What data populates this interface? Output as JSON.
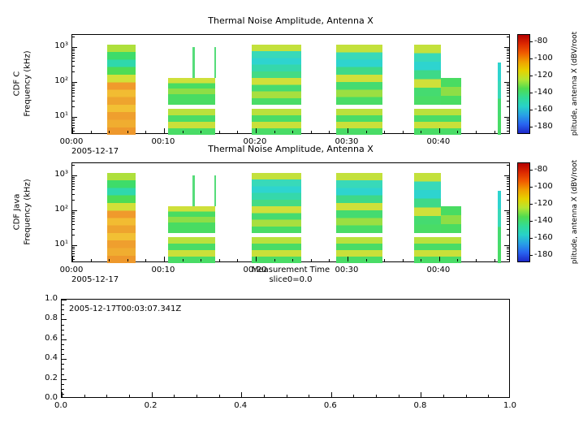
{
  "figure": {
    "background": "#ffffff"
  },
  "chart_data": {
    "type": "heatmap",
    "description": "Two stacked spectrogram panels (CDF C and CDF Java readers) of thermal noise amplitude bursts vs time and log frequency, plus an empty bottom panel with a time annotation.",
    "panels": [
      {
        "name": "CDF C",
        "title": "Thermal Noise Amplitude, Antenna X",
        "ylabel_line1": "CDF C",
        "ylabel_line2": "Frequency (kHz)",
        "y_scale": "log",
        "y_tick_labels": [
          "10³",
          "10²",
          "10¹"
        ],
        "y_tick_values": [
          1000,
          100,
          10
        ],
        "x_tick_labels": [
          "00:00",
          "00:10",
          "00:20",
          "00:30",
          "00:40"
        ],
        "x_tick_minutes": [
          0,
          10,
          20,
          30,
          40
        ],
        "x_start_date": "2005-12-17",
        "x_range_minutes": [
          0,
          47.8
        ],
        "colorbar": {
          "label": "plitude, antenna X (dBV/root",
          "tick_labels": [
            "-80",
            "-100",
            "-120",
            "-140",
            "-160",
            "-180"
          ]
        }
      },
      {
        "name": "CDF Java",
        "title": "Thermal Noise Amplitude, Antenna X",
        "ylabel_line1": "CDF Java",
        "ylabel_line2": "Frequency (kHz)",
        "y_scale": "log",
        "y_tick_labels": [
          "10³",
          "10²",
          "10¹"
        ],
        "y_tick_values": [
          1000,
          100,
          10
        ],
        "x_tick_labels": [
          "00:00",
          "00:10",
          "00:20",
          "00:30",
          "00:40"
        ],
        "x_tick_minutes": [
          0,
          10,
          20,
          30,
          40
        ],
        "x_start_date": "2005-12-17",
        "x_range_minutes": [
          0,
          47.8
        ],
        "xlabel": "Measurement Time",
        "xlabel2": "slice0=0.0",
        "colorbar": {
          "label": "plitude, antenna X (dBV/root",
          "tick_labels": [
            "-80",
            "-100",
            "-120",
            "-140",
            "-160",
            "-180"
          ]
        }
      }
    ],
    "colorbar_gradient": [
      "#b40000",
      "#dc2800",
      "#f05a00",
      "#f0a000",
      "#e6d200",
      "#b4e632",
      "#50dc50",
      "#32dc96",
      "#28d2c8",
      "#28a0e6",
      "#2864f0",
      "#1e28c8"
    ],
    "segments": [
      {
        "t": [
          3.8,
          6.9
        ],
        "y": [
          0.1,
          1.0
        ],
        "c": [
          "#aee03c",
          "#3edc6a",
          "#2fd8ac",
          "#4ddc55",
          "#d2e038",
          "#f09a2c",
          "#f2bc32",
          "#eea42e",
          "#f2c034",
          "#ef9f2e",
          "#f0ad30",
          "#ee982c"
        ]
      },
      {
        "t": [
          10.4,
          15.6
        ],
        "y": [
          0.43,
          0.7
        ],
        "c": [
          "#cfe03a",
          "#49dc62",
          "#8ede46",
          "#49dc62",
          "#49dc62"
        ]
      },
      {
        "t": [
          10.4,
          15.6
        ],
        "y": [
          0.74,
          1.0
        ],
        "c": [
          "#b9e13c",
          "#49dc66",
          "#c9e03a",
          "#49dc66"
        ]
      },
      {
        "t": [
          13.1,
          13.35
        ],
        "y": [
          0.12,
          0.43
        ],
        "c": [
          "#56dc7a"
        ]
      },
      {
        "t": [
          15.45,
          15.7
        ],
        "y": [
          0.12,
          0.43
        ],
        "c": [
          "#56dc7a"
        ]
      },
      {
        "t": [
          19.6,
          25.0
        ],
        "y": [
          0.1,
          0.7
        ],
        "c": [
          "#c3e13c",
          "#38d9b9",
          "#2ed4cf",
          "#35d8ab",
          "#44db85",
          "#cfe03a",
          "#45db70",
          "#a8df3f",
          "#49dc66"
        ]
      },
      {
        "t": [
          19.6,
          25.0
        ],
        "y": [
          0.74,
          1.0
        ],
        "c": [
          "#b9e13c",
          "#49dc66",
          "#c9e03a",
          "#49dc66"
        ]
      },
      {
        "t": [
          28.8,
          33.8
        ],
        "y": [
          0.1,
          0.7
        ],
        "c": [
          "#c3e13c",
          "#38d9b9",
          "#2ed4cf",
          "#3ed988",
          "#cfe03a",
          "#45db70",
          "#9bdf42",
          "#49dc66"
        ]
      },
      {
        "t": [
          28.8,
          33.8
        ],
        "y": [
          0.74,
          1.0
        ],
        "c": [
          "#b9e13c",
          "#49dc66",
          "#c9e03a",
          "#49dc66"
        ]
      },
      {
        "t": [
          37.3,
          40.2
        ],
        "y": [
          0.1,
          0.7
        ],
        "c": [
          "#c3e13c",
          "#38d9b9",
          "#2ed4cf",
          "#3ed988",
          "#cfe03a",
          "#45db70",
          "#49dc66"
        ]
      },
      {
        "t": [
          40.2,
          42.4
        ],
        "y": [
          0.43,
          0.7
        ],
        "c": [
          "#49dc62",
          "#8ede46",
          "#49dc62"
        ]
      },
      {
        "t": [
          37.3,
          42.4
        ],
        "y": [
          0.74,
          1.0
        ],
        "c": [
          "#b9e13c",
          "#49dc66",
          "#c9e03a",
          "#49dc66"
        ]
      },
      {
        "t": [
          46.4,
          46.7
        ],
        "y": [
          0.28,
          1.0
        ],
        "c": [
          "#2ed4cf",
          "#38d9b9",
          "#45db70",
          "#49dc66"
        ]
      }
    ],
    "bottom_panel": {
      "annotation": "2005-12-17T00:03:07.341Z",
      "x_ticks": [
        "0.0",
        "0.2",
        "0.4",
        "0.6",
        "0.8",
        "1.0"
      ],
      "y_ticks": [
        "0.0",
        "0.2",
        "0.4",
        "0.6",
        "0.8",
        "1.0"
      ],
      "x_range": [
        0,
        1
      ],
      "y_range": [
        0,
        1
      ]
    }
  }
}
